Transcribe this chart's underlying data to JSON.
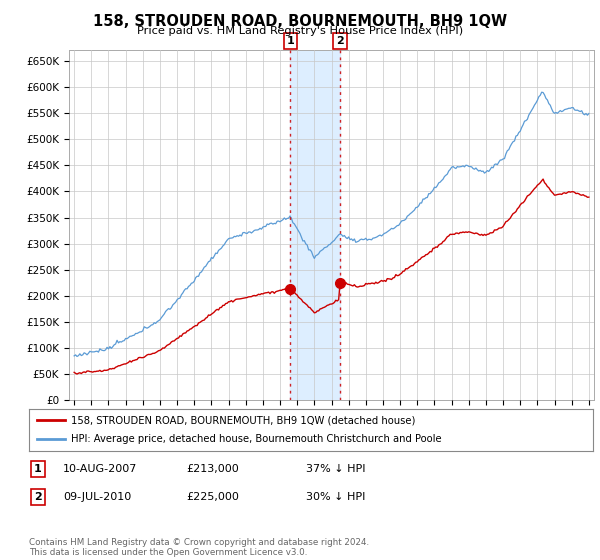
{
  "title": "158, STROUDEN ROAD, BOURNEMOUTH, BH9 1QW",
  "subtitle": "Price paid vs. HM Land Registry's House Price Index (HPI)",
  "legend_line1": "158, STROUDEN ROAD, BOURNEMOUTH, BH9 1QW (detached house)",
  "legend_line2": "HPI: Average price, detached house, Bournemouth Christchurch and Poole",
  "footer": "Contains HM Land Registry data © Crown copyright and database right 2024.\nThis data is licensed under the Open Government Licence v3.0.",
  "sale1_date": "10-AUG-2007",
  "sale1_price": "£213,000",
  "sale1_hpi": "37% ↓ HPI",
  "sale2_date": "09-JUL-2010",
  "sale2_price": "£225,000",
  "sale2_hpi": "30% ↓ HPI",
  "hpi_color": "#5b9bd5",
  "price_color": "#cc0000",
  "shade_color": "#ddeeff",
  "background_color": "#ffffff",
  "grid_color": "#c8c8c8",
  "ylim": [
    0,
    670000
  ],
  "yticks": [
    0,
    50000,
    100000,
    150000,
    200000,
    250000,
    300000,
    350000,
    400000,
    450000,
    500000,
    550000,
    600000,
    650000
  ],
  "sale1_year": 2007.608,
  "sale1_value": 213000,
  "sale2_year": 2010.5,
  "sale2_value": 225000,
  "xmin": 1995,
  "xmax": 2025
}
